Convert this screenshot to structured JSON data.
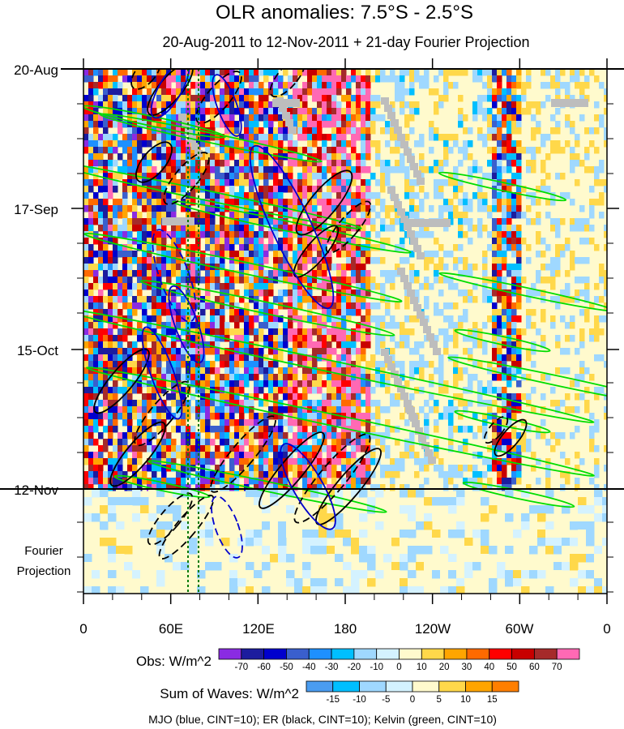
{
  "chart_data": {
    "type": "heatmap",
    "title": "OLR anomalies: 7.5°S - 2.5°S",
    "subtitle": "20-Aug-2011 to 12-Nov-2011 + 21-day Fourier Projection",
    "xlabel": "",
    "ylabel": "",
    "x_ticks": [
      "0",
      "60E",
      "120E",
      "180",
      "120W",
      "60W",
      "0"
    ],
    "y_ticks": [
      "20-Aug",
      "17-Sep",
      "15-Oct",
      "12-Nov"
    ],
    "projection_label": [
      "Fourier",
      "Projection"
    ],
    "xlim": [
      0,
      360
    ],
    "date_range": [
      "20-Aug-2011",
      "12-Nov-2011"
    ],
    "projection_days": 21,
    "colorbars": [
      {
        "label": "Obs: W/m^2",
        "levels": [
          "-70",
          "-60",
          "-50",
          "-40",
          "-30",
          "-20",
          "-10",
          "0",
          "10",
          "20",
          "30",
          "40",
          "50",
          "60",
          "70"
        ],
        "colors": [
          "#8a2be2",
          "#1c1c9e",
          "#0000cd",
          "#3a5fcd",
          "#1e90ff",
          "#00bfff",
          "#9fd8ff",
          "#d4f2ff",
          "#fffacd",
          "#ffd84a",
          "#ffa500",
          "#ff6a00",
          "#ff0000",
          "#c80000",
          "#a52a2a",
          "#ff69b4"
        ]
      },
      {
        "label": "Sum of Waves: W/m^2",
        "levels": [
          "-15",
          "-10",
          "-5",
          "0",
          "5",
          "10",
          "15"
        ],
        "colors": [
          "#4a9cf0",
          "#00bfff",
          "#9fd8ff",
          "#d4f2ff",
          "#fffacd",
          "#ffd84a",
          "#ffa500",
          "#ff7f00"
        ]
      }
    ],
    "wave_legend": "MJO (blue, CINT=10); ER (black, CINT=10); Kelvin (green, CINT=10)",
    "wave_colors": {
      "mjo": "#0000cd",
      "er": "#000000",
      "kelvin": "#00dd00"
    },
    "active_band_lons": [
      [
        0,
        195
      ],
      [
        280,
        300
      ]
    ]
  }
}
